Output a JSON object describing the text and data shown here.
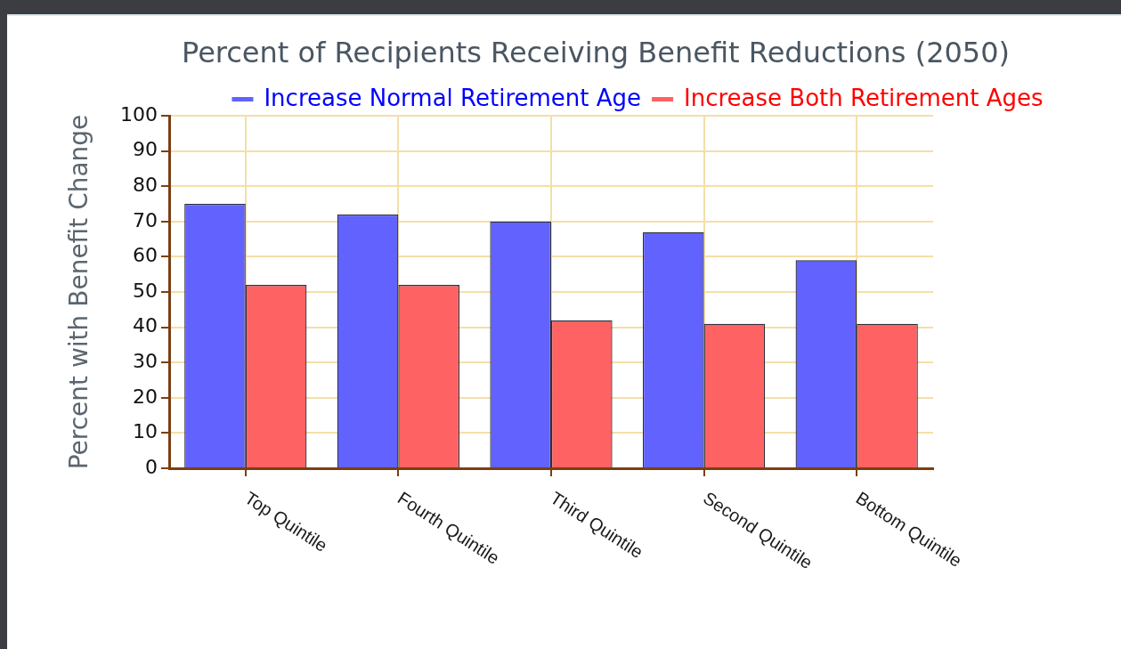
{
  "chart_data": {
    "type": "bar",
    "title": "Percent of Recipients Receiving Benefit Reductions (2050)",
    "ylabel": "Percent with Benefit Change",
    "categories": [
      "Top Quintile",
      "Fourth Quintile",
      "Third Quintile",
      "Second Quintile",
      "Bottom Quintile"
    ],
    "series": [
      {
        "name": "Increase Normal Retirement Age",
        "color": "#6262ff",
        "values": [
          75,
          72,
          70,
          67,
          59
        ]
      },
      {
        "name": "Increase Both Retirement Ages",
        "color": "#ff6262",
        "values": [
          52,
          52,
          42,
          41,
          41
        ]
      }
    ],
    "ylim": [
      0,
      100
    ],
    "yticks": [
      0,
      10,
      20,
      30,
      40,
      50,
      60,
      70,
      80,
      90,
      100
    ],
    "grid": true,
    "legend": "top"
  }
}
